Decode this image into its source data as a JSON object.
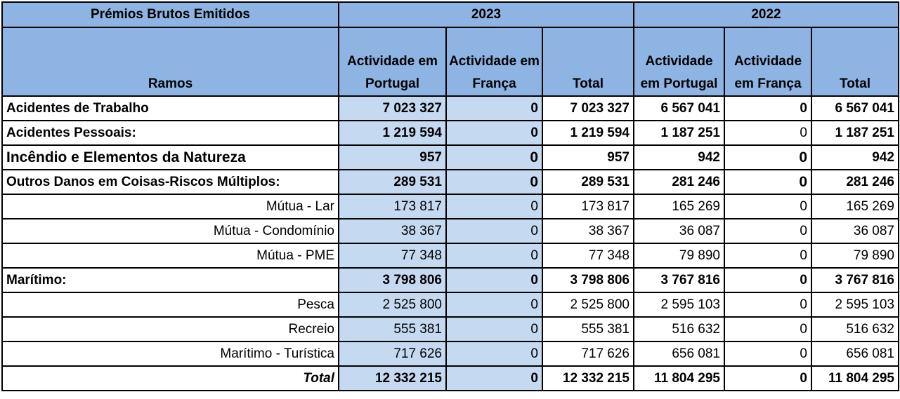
{
  "header": {
    "title": "Prémios Brutos Emitidos",
    "year_2023": "2023",
    "year_2022": "2022",
    "ramos": "Ramos",
    "col_2023": [
      "Actividade em Portugal",
      "Actividade em França",
      "Total"
    ],
    "col_2022": [
      "Actividade em Portugal",
      "Actividade em França",
      "Total"
    ]
  },
  "rows": [
    {
      "label": "Acidentes de Trabalho",
      "v": [
        "7 023 327",
        "0",
        "7 023 327",
        "6 567 041",
        "0",
        "6 567 041"
      ]
    },
    {
      "label": "Acidentes Pessoais:",
      "v": [
        "1 219 594",
        "0",
        "1 219 594",
        "1 187 251",
        "0",
        "1 187 251"
      ]
    },
    {
      "label": "Incêndio e Elementos da Natureza",
      "v": [
        "957",
        "0",
        "957",
        "942",
        "0",
        "942"
      ]
    },
    {
      "label": "Outros Danos em Coisas-Riscos Múltiplos:",
      "v": [
        "289 531",
        "0",
        "289 531",
        "281 246",
        "0",
        "281 246"
      ]
    },
    {
      "label": "Mútua - Lar",
      "v": [
        "173 817",
        "0",
        "173 817",
        "165 269",
        "0",
        "165 269"
      ]
    },
    {
      "label": "Mútua - Condomínio",
      "v": [
        "38 367",
        "0",
        "38 367",
        "36 087",
        "0",
        "36 087"
      ]
    },
    {
      "label": "Mútua - PME",
      "v": [
        "77 348",
        "0",
        "77 348",
        "79 890",
        "0",
        "79 890"
      ]
    },
    {
      "label": "Marítimo:",
      "v": [
        "3 798 806",
        "0",
        "3 798 806",
        "3 767 816",
        "0",
        "3 767 816"
      ]
    },
    {
      "label": "Pesca",
      "v": [
        "2 525 800",
        "0",
        "2 525 800",
        "2 595 103",
        "0",
        "2 595 103"
      ]
    },
    {
      "label": "Recreio",
      "v": [
        "555 381",
        "0",
        "555 381",
        "516 632",
        "0",
        "516 632"
      ]
    },
    {
      "label": "Marítimo - Turística",
      "v": [
        "717 626",
        "0",
        "717 626",
        "656 081",
        "0",
        "656 081"
      ]
    },
    {
      "label": "Total",
      "v": [
        "12 332 215",
        "0",
        "12 332 215",
        "11 804 295",
        "0",
        "11 804 295"
      ]
    }
  ]
}
